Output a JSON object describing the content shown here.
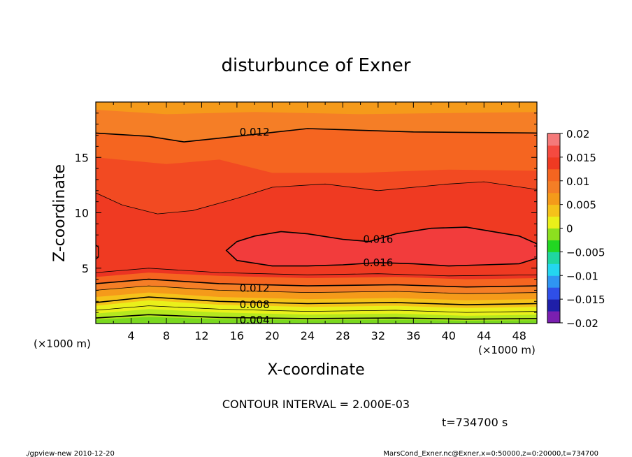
{
  "chart_data": {
    "type": "contour",
    "title": "disturbunce of Exner",
    "xlabel": "X-coordinate",
    "ylabel": "Z-coordinate",
    "x_unit_left": "(×1000 m)",
    "x_unit_right": "(×1000 m)",
    "xlim": [
      0,
      50
    ],
    "ylim": [
      0,
      20
    ],
    "x_ticks": [
      4,
      8,
      12,
      16,
      20,
      24,
      28,
      32,
      36,
      40,
      44,
      48
    ],
    "y_ticks": [
      5,
      10,
      15
    ],
    "contour_interval_text": "CONTOUR INTERVAL = 2.000E-03",
    "contour_labels": [
      {
        "text": "0.012",
        "x": 18,
        "z": 17.3
      },
      {
        "text": "0.016",
        "x": 32,
        "z": 7.6
      },
      {
        "text": "0.016",
        "x": 32,
        "z": 5.5
      },
      {
        "text": "0.012",
        "x": 18,
        "z": 3.2
      },
      {
        "text": "0.008",
        "x": 18,
        "z": 1.7
      },
      {
        "text": "0.004",
        "x": 18,
        "z": 0.3
      }
    ],
    "colorbar": {
      "min": -0.02,
      "max": 0.02,
      "tick_labels": [
        "0.02",
        "0.015",
        "0.01",
        "0.005",
        "0",
        "−0.005",
        "−0.01",
        "−0.015",
        "−0.02"
      ],
      "colors": [
        "#7a1fb0",
        "#1f1fa8",
        "#2f4fe8",
        "#2f95f2",
        "#24d6f0",
        "#1fd6a0",
        "#22d622",
        "#8ce01f",
        "#eaf01a",
        "#f5c21a",
        "#f59a1a",
        "#f57e26",
        "#f56520",
        "#ef3a22",
        "#f54a40",
        "#f57a7a"
      ]
    },
    "levels": [
      -0.002,
      0.0,
      0.002,
      0.004,
      0.006,
      0.008,
      0.01,
      0.012,
      0.014,
      0.016
    ]
  },
  "footer": {
    "time_label": "t=734700 s",
    "program_label": "./gpview-new   2010-12-20",
    "source_label": "MarsCond_Exner.nc@Exner,x=0:50000,z=0:20000,t=734700"
  }
}
